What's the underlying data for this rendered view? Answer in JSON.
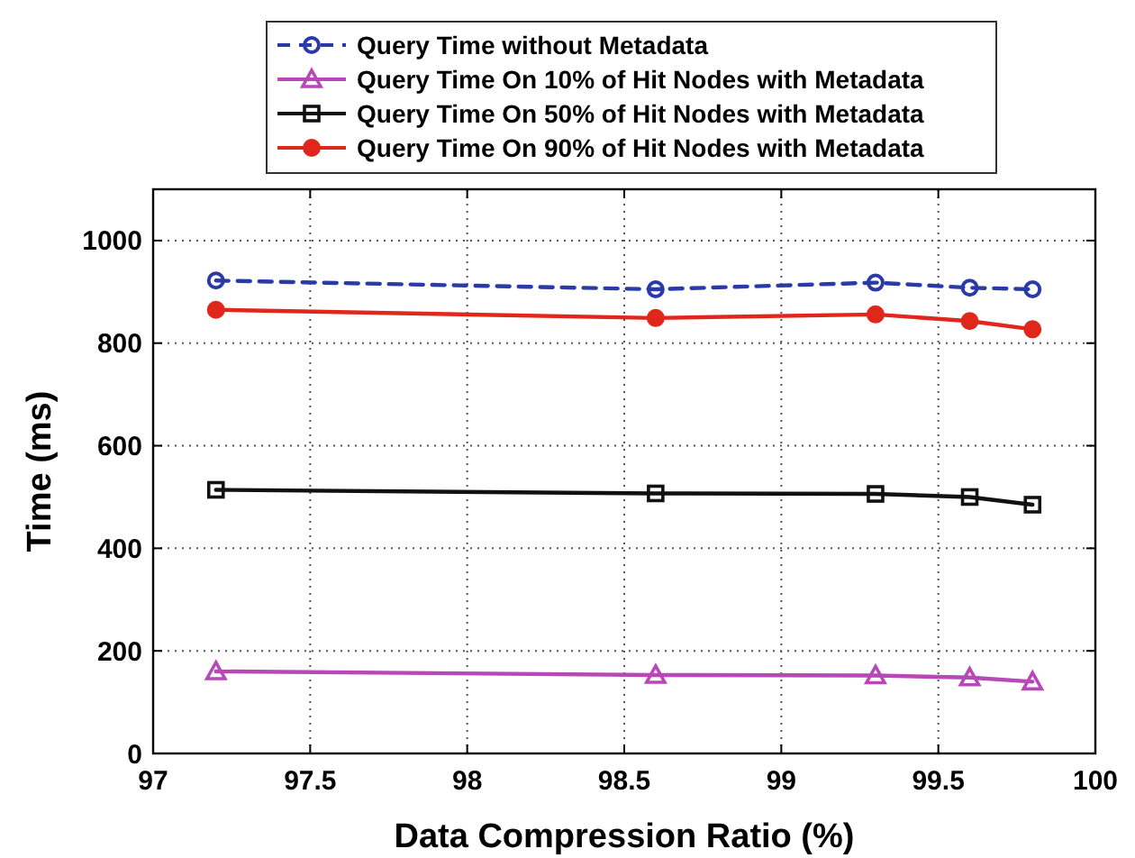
{
  "chart_data": {
    "type": "line",
    "xlabel": "Data Compression Ratio (%)",
    "ylabel": "Time (ms)",
    "x": [
      97.2,
      98.6,
      99.3,
      99.6,
      99.8
    ],
    "series": [
      {
        "name": "Query Time without Metadata",
        "color": "#2a3ba8",
        "marker": "circle",
        "line_style": "dashed",
        "values": [
          922,
          905,
          918,
          908,
          905
        ]
      },
      {
        "name": "Query Time On 10% of Hit Nodes with Metadata",
        "color": "#b847b8",
        "marker": "triangle",
        "line_style": "solid",
        "values": [
          160,
          153,
          152,
          148,
          140
        ]
      },
      {
        "name": "Query Time On 50% of Hit Nodes with Metadata",
        "color": "#111111",
        "marker": "square",
        "line_style": "solid",
        "values": [
          514,
          507,
          506,
          500,
          485
        ]
      },
      {
        "name": "Query Time On 90% of Hit Nodes with Metadata",
        "color": "#e0271c",
        "marker": "circle",
        "line_style": "solid",
        "values": [
          865,
          849,
          856,
          843,
          827
        ]
      }
    ],
    "xlim": [
      97,
      100
    ],
    "xticks": [
      97,
      97.5,
      98,
      98.5,
      99,
      99.5,
      100
    ],
    "ylim": [
      0,
      1100
    ],
    "yticks": [
      0,
      200,
      400,
      600,
      800,
      1000
    ],
    "grid": true,
    "legend": "top"
  }
}
